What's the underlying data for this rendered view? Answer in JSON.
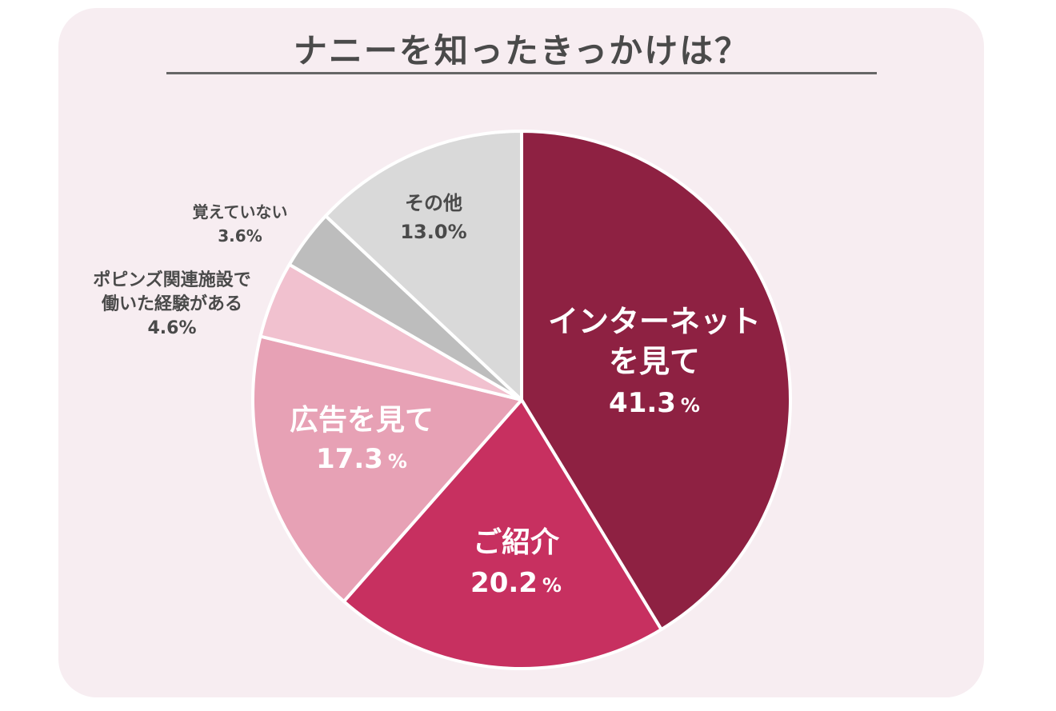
{
  "chart_data": {
    "type": "pie",
    "title": "ナニーを知ったきっかけは？",
    "slices": [
      {
        "lines": [
          "インターネット",
          "を見て"
        ],
        "value": 41.3,
        "value_text": "41.3",
        "unit": "%",
        "color": "#8e2142",
        "text_color": "#ffffff",
        "placement": "inside"
      },
      {
        "lines": [
          "ご紹介"
        ],
        "value": 20.2,
        "value_text": "20.2",
        "unit": "%",
        "color": "#c73060",
        "text_color": "#ffffff",
        "placement": "inside"
      },
      {
        "lines": [
          "広告を見て"
        ],
        "value": 17.3,
        "value_text": "17.3",
        "unit": "%",
        "color": "#e7a1b5",
        "text_color": "#ffffff",
        "placement": "inside"
      },
      {
        "lines": [
          "ポピンズ関連施設で",
          "働いた経験がある"
        ],
        "value": 4.6,
        "value_text": "4.6",
        "unit": "%",
        "color": "#f1c1cf",
        "text_color": "#4a4a4a",
        "placement": "outside"
      },
      {
        "lines": [
          "覚えていない"
        ],
        "value": 3.6,
        "value_text": "3.6",
        "unit": "%",
        "color": "#bdbdbd",
        "text_color": "#4a4a4a",
        "placement": "outside"
      },
      {
        "lines": [
          "その他"
        ],
        "value": 13.0,
        "value_text": "13.0",
        "unit": "%",
        "color": "#d9d9d9",
        "text_color": "#4a4a4a",
        "placement": "inside"
      }
    ]
  }
}
